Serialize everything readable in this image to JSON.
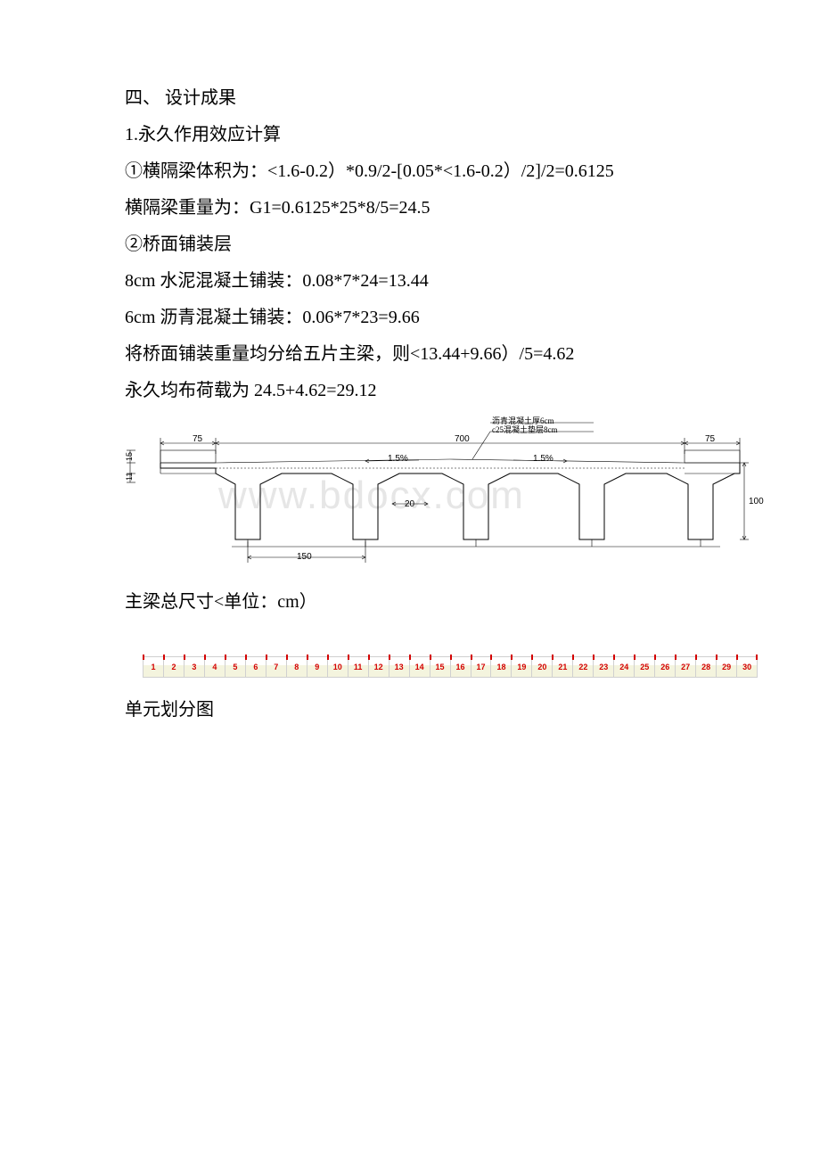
{
  "text": {
    "l1": "四、 设计成果",
    "l2": "1.永久作用效应计算",
    "l3": "①横隔梁体积为：<1.6-0.2）*0.9/2-[0.05*<1.6-0.2）/2]/2=0.6125",
    "l4": "横隔梁重量为：G1=0.6125*25*8/5=24.5",
    "l5": "②桥面铺装层",
    "l6": "8cm 水泥混凝土铺装：0.08*7*24=13.44",
    "l7": "6cm 沥青混凝土铺装：0.06*7*23=9.66",
    "l8": "将桥面铺装重量均分给五片主梁，则<13.44+9.66）/5=4.62",
    "l9": "永久均布荷载为 24.5+4.62=29.12",
    "caption1": "主梁总尺寸<单位：cm）",
    "caption2": "单元划分图"
  },
  "bridge_diagram": {
    "watermark": "www.bdocx.com",
    "notes": [
      "沥青混凝土厚6cm",
      "c25混凝土垫层8cm"
    ],
    "dims": {
      "left_overhang": "75",
      "main_span": "700",
      "right_overhang": "75",
      "girder_spacing": "150",
      "web_width": "20",
      "height_total": "100",
      "slope": "1.5%",
      "side_h1": "15",
      "side_h2": "11"
    },
    "stroke": "#000000",
    "thin": 0.6,
    "thick": 1.2
  },
  "ruler": {
    "count": 30,
    "num_color": "#d40000",
    "border_color": "#d0d0d0",
    "fill_top": "#ffffff",
    "fill_bottom": "#f4f4de"
  }
}
